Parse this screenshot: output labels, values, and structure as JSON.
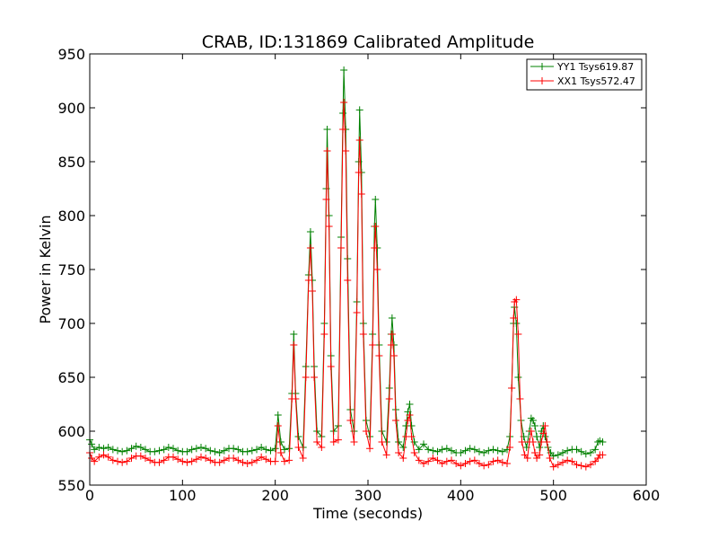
{
  "chart_data": {
    "type": "line",
    "title": "CRAB, ID:131869 Calibrated Amplitude",
    "xlabel": "Time (seconds)",
    "ylabel": "Power in Kelvin",
    "xlim": [
      0,
      600
    ],
    "ylim": [
      550,
      950
    ],
    "xticks": [
      0,
      100,
      200,
      300,
      400,
      500,
      600
    ],
    "yticks": [
      550,
      600,
      650,
      700,
      750,
      800,
      850,
      900,
      950
    ],
    "xtick_labels": [
      "0",
      "100",
      "200",
      "300",
      "400",
      "500",
      "600"
    ],
    "ytick_labels": [
      "550",
      "600",
      "650",
      "700",
      "750",
      "800",
      "850",
      "900",
      "950"
    ],
    "grid": false,
    "legend_position": "top-right",
    "marker": "+",
    "series": [
      {
        "name": "YY1 Tsys619.87",
        "color": "#008000",
        "points": [
          [
            0,
            592
          ],
          [
            2,
            588
          ],
          [
            5,
            583
          ],
          [
            10,
            585
          ],
          [
            15,
            584
          ],
          [
            20,
            585
          ],
          [
            25,
            583
          ],
          [
            30,
            582
          ],
          [
            35,
            581
          ],
          [
            40,
            582
          ],
          [
            45,
            584
          ],
          [
            50,
            586
          ],
          [
            55,
            585
          ],
          [
            60,
            583
          ],
          [
            65,
            581
          ],
          [
            70,
            581
          ],
          [
            75,
            582
          ],
          [
            80,
            583
          ],
          [
            85,
            585
          ],
          [
            90,
            584
          ],
          [
            95,
            582
          ],
          [
            100,
            581
          ],
          [
            105,
            581
          ],
          [
            110,
            583
          ],
          [
            115,
            584
          ],
          [
            120,
            585
          ],
          [
            125,
            584
          ],
          [
            130,
            582
          ],
          [
            135,
            581
          ],
          [
            140,
            580
          ],
          [
            145,
            582
          ],
          [
            150,
            584
          ],
          [
            155,
            584
          ],
          [
            160,
            583
          ],
          [
            165,
            581
          ],
          [
            170,
            581
          ],
          [
            175,
            582
          ],
          [
            180,
            583
          ],
          [
            185,
            585
          ],
          [
            190,
            583
          ],
          [
            195,
            582
          ],
          [
            200,
            584
          ],
          [
            203,
            615
          ],
          [
            206,
            590
          ],
          [
            210,
            583
          ],
          [
            215,
            584
          ],
          [
            218,
            635
          ],
          [
            220,
            690
          ],
          [
            222,
            635
          ],
          [
            225,
            595
          ],
          [
            230,
            585
          ],
          [
            233,
            660
          ],
          [
            236,
            745
          ],
          [
            238,
            785
          ],
          [
            240,
            740
          ],
          [
            242,
            660
          ],
          [
            245,
            600
          ],
          [
            250,
            595
          ],
          [
            253,
            700
          ],
          [
            255,
            825
          ],
          [
            256,
            880
          ],
          [
            258,
            800
          ],
          [
            260,
            670
          ],
          [
            263,
            600
          ],
          [
            268,
            605
          ],
          [
            271,
            780
          ],
          [
            273,
            895
          ],
          [
            274,
            935
          ],
          [
            276,
            880
          ],
          [
            278,
            760
          ],
          [
            281,
            620
          ],
          [
            285,
            600
          ],
          [
            288,
            720
          ],
          [
            290,
            850
          ],
          [
            291,
            898
          ],
          [
            293,
            840
          ],
          [
            295,
            700
          ],
          [
            298,
            610
          ],
          [
            302,
            595
          ],
          [
            305,
            690
          ],
          [
            307,
            790
          ],
          [
            308,
            815
          ],
          [
            310,
            770
          ],
          [
            312,
            680
          ],
          [
            315,
            600
          ],
          [
            320,
            590
          ],
          [
            323,
            640
          ],
          [
            325,
            690
          ],
          [
            326,
            705
          ],
          [
            328,
            680
          ],
          [
            330,
            620
          ],
          [
            333,
            590
          ],
          [
            338,
            585
          ],
          [
            341,
            605
          ],
          [
            343,
            618
          ],
          [
            345,
            625
          ],
          [
            347,
            605
          ],
          [
            350,
            590
          ],
          [
            355,
            583
          ],
          [
            360,
            588
          ],
          [
            365,
            583
          ],
          [
            370,
            582
          ],
          [
            375,
            581
          ],
          [
            380,
            583
          ],
          [
            385,
            584
          ],
          [
            390,
            582
          ],
          [
            395,
            580
          ],
          [
            400,
            580
          ],
          [
            405,
            582
          ],
          [
            410,
            584
          ],
          [
            415,
            583
          ],
          [
            420,
            581
          ],
          [
            425,
            580
          ],
          [
            430,
            582
          ],
          [
            435,
            583
          ],
          [
            440,
            582
          ],
          [
            445,
            581
          ],
          [
            450,
            583
          ],
          [
            453,
            595
          ],
          [
            455,
            640
          ],
          [
            457,
            700
          ],
          [
            458,
            715
          ],
          [
            460,
            700
          ],
          [
            462,
            650
          ],
          [
            465,
            610
          ],
          [
            468,
            595
          ],
          [
            471,
            585
          ],
          [
            474,
            600
          ],
          [
            476,
            612
          ],
          [
            478,
            610
          ],
          [
            480,
            605
          ],
          [
            482,
            595
          ],
          [
            485,
            585
          ],
          [
            487,
            600
          ],
          [
            489,
            605
          ],
          [
            491,
            595
          ],
          [
            494,
            585
          ],
          [
            497,
            580
          ],
          [
            500,
            577
          ],
          [
            505,
            578
          ],
          [
            510,
            580
          ],
          [
            515,
            582
          ],
          [
            520,
            583
          ],
          [
            525,
            583
          ],
          [
            530,
            581
          ],
          [
            535,
            579
          ],
          [
            540,
            580
          ],
          [
            545,
            583
          ],
          [
            548,
            590
          ],
          [
            550,
            591
          ],
          [
            553,
            590
          ]
        ]
      },
      {
        "name": "XX1 Tsys572.47",
        "color": "#ff0000",
        "points": [
          [
            0,
            580
          ],
          [
            2,
            575
          ],
          [
            5,
            572
          ],
          [
            10,
            576
          ],
          [
            15,
            578
          ],
          [
            20,
            576
          ],
          [
            25,
            573
          ],
          [
            30,
            572
          ],
          [
            35,
            571
          ],
          [
            40,
            572
          ],
          [
            45,
            575
          ],
          [
            50,
            577
          ],
          [
            55,
            577
          ],
          [
            60,
            575
          ],
          [
            65,
            573
          ],
          [
            70,
            571
          ],
          [
            75,
            571
          ],
          [
            80,
            573
          ],
          [
            85,
            576
          ],
          [
            90,
            576
          ],
          [
            95,
            574
          ],
          [
            100,
            572
          ],
          [
            105,
            571
          ],
          [
            110,
            572
          ],
          [
            115,
            574
          ],
          [
            120,
            576
          ],
          [
            125,
            575
          ],
          [
            130,
            573
          ],
          [
            135,
            571
          ],
          [
            140,
            571
          ],
          [
            145,
            573
          ],
          [
            150,
            575
          ],
          [
            155,
            575
          ],
          [
            160,
            573
          ],
          [
            165,
            571
          ],
          [
            170,
            570
          ],
          [
            175,
            571
          ],
          [
            180,
            573
          ],
          [
            185,
            576
          ],
          [
            190,
            574
          ],
          [
            195,
            572
          ],
          [
            200,
            572
          ],
          [
            203,
            605
          ],
          [
            206,
            580
          ],
          [
            210,
            572
          ],
          [
            215,
            573
          ],
          [
            218,
            630
          ],
          [
            220,
            680
          ],
          [
            222,
            630
          ],
          [
            225,
            585
          ],
          [
            230,
            575
          ],
          [
            233,
            650
          ],
          [
            236,
            740
          ],
          [
            238,
            770
          ],
          [
            240,
            730
          ],
          [
            242,
            650
          ],
          [
            245,
            590
          ],
          [
            250,
            585
          ],
          [
            253,
            690
          ],
          [
            255,
            815
          ],
          [
            256,
            860
          ],
          [
            258,
            790
          ],
          [
            260,
            660
          ],
          [
            263,
            590
          ],
          [
            268,
            592
          ],
          [
            271,
            770
          ],
          [
            273,
            880
          ],
          [
            274,
            905
          ],
          [
            276,
            860
          ],
          [
            278,
            740
          ],
          [
            281,
            610
          ],
          [
            285,
            590
          ],
          [
            288,
            710
          ],
          [
            290,
            840
          ],
          [
            291,
            870
          ],
          [
            293,
            820
          ],
          [
            295,
            690
          ],
          [
            298,
            600
          ],
          [
            302,
            584
          ],
          [
            305,
            680
          ],
          [
            307,
            770
          ],
          [
            308,
            790
          ],
          [
            310,
            750
          ],
          [
            312,
            670
          ],
          [
            315,
            590
          ],
          [
            320,
            578
          ],
          [
            323,
            630
          ],
          [
            325,
            680
          ],
          [
            326,
            690
          ],
          [
            328,
            670
          ],
          [
            330,
            610
          ],
          [
            333,
            580
          ],
          [
            338,
            575
          ],
          [
            341,
            595
          ],
          [
            343,
            610
          ],
          [
            345,
            615
          ],
          [
            347,
            595
          ],
          [
            350,
            580
          ],
          [
            355,
            573
          ],
          [
            360,
            570
          ],
          [
            365,
            572
          ],
          [
            370,
            575
          ],
          [
            375,
            573
          ],
          [
            380,
            570
          ],
          [
            385,
            572
          ],
          [
            390,
            573
          ],
          [
            395,
            570
          ],
          [
            400,
            568
          ],
          [
            405,
            570
          ],
          [
            410,
            572
          ],
          [
            415,
            573
          ],
          [
            420,
            570
          ],
          [
            425,
            568
          ],
          [
            430,
            569
          ],
          [
            435,
            572
          ],
          [
            440,
            573
          ],
          [
            445,
            571
          ],
          [
            450,
            570
          ],
          [
            453,
            585
          ],
          [
            455,
            640
          ],
          [
            457,
            705
          ],
          [
            458,
            720
          ],
          [
            460,
            722
          ],
          [
            462,
            690
          ],
          [
            464,
            630
          ],
          [
            466,
            590
          ],
          [
            469,
            578
          ],
          [
            472,
            575
          ],
          [
            474,
            590
          ],
          [
            476,
            600
          ],
          [
            478,
            590
          ],
          [
            480,
            580
          ],
          [
            482,
            575
          ],
          [
            485,
            578
          ],
          [
            487,
            590
          ],
          [
            489,
            598
          ],
          [
            491,
            605
          ],
          [
            493,
            590
          ],
          [
            496,
            575
          ],
          [
            500,
            567
          ],
          [
            505,
            569
          ],
          [
            510,
            571
          ],
          [
            515,
            573
          ],
          [
            520,
            572
          ],
          [
            525,
            569
          ],
          [
            530,
            568
          ],
          [
            535,
            567
          ],
          [
            540,
            569
          ],
          [
            545,
            572
          ],
          [
            548,
            575
          ],
          [
            550,
            578
          ],
          [
            553,
            578
          ]
        ]
      }
    ]
  }
}
